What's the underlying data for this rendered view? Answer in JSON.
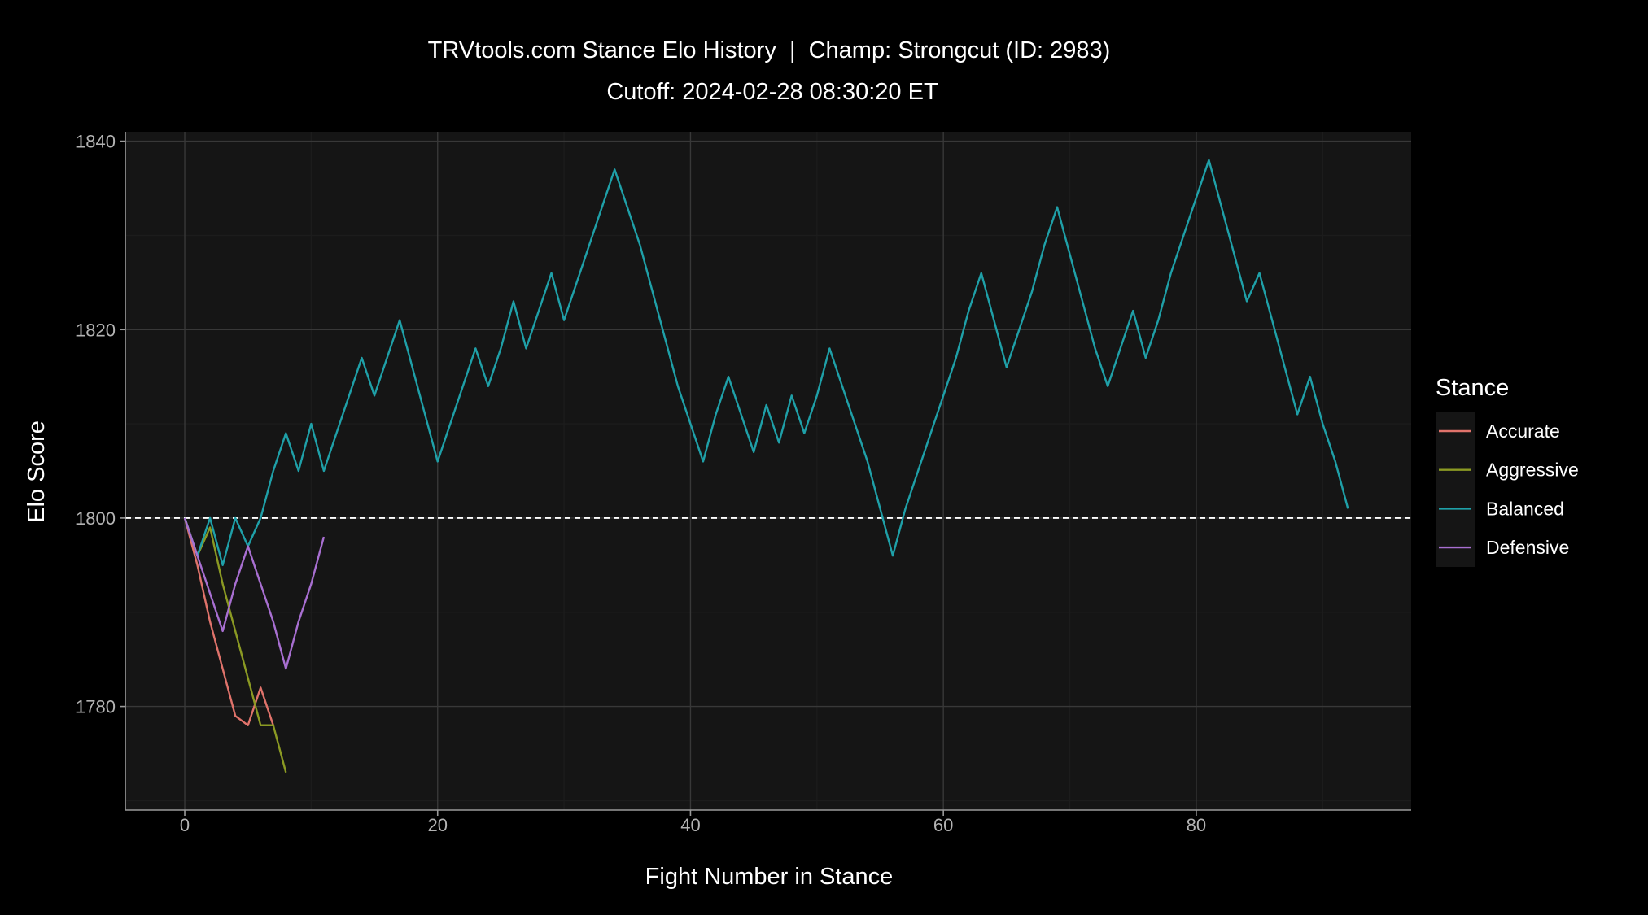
{
  "chart_data": {
    "type": "line",
    "title": "TRVtools.com Stance Elo History  |  Champ: Strongcut (ID: 2983)",
    "subtitle": "Cutoff: 2024-02-28 08:30:20 ET",
    "xlabel": "Fight Number in Stance",
    "ylabel": "Elo Score",
    "xlim": [
      -4.7,
      97
    ],
    "ylim": [
      1769,
      1841
    ],
    "xticks": [
      0,
      20,
      40,
      60,
      80
    ],
    "yticks": [
      1780,
      1800,
      1820,
      1840
    ],
    "reference_line": {
      "y": 1800,
      "style": "dashed"
    },
    "grid": true,
    "legend": {
      "title": "Stance",
      "position": "right"
    },
    "series": [
      {
        "name": "Accurate",
        "color": "#e0736b",
        "x": [
          0,
          1,
          2,
          3,
          4,
          5,
          6,
          7
        ],
        "y": [
          1800,
          1795,
          1789,
          1784,
          1779,
          1778,
          1782,
          1778
        ]
      },
      {
        "name": "Aggressive",
        "color": "#8b9a23",
        "x": [
          0,
          1,
          2,
          3,
          4,
          5,
          6,
          7,
          8
        ],
        "y": [
          1800,
          1796,
          1799,
          1793,
          1788,
          1783,
          1778,
          1778,
          1773
        ]
      },
      {
        "name": "Balanced",
        "color": "#1fa0a8",
        "x": [
          0,
          1,
          2,
          3,
          4,
          5,
          6,
          7,
          8,
          9,
          10,
          11,
          12,
          13,
          14,
          15,
          16,
          17,
          18,
          19,
          20,
          21,
          22,
          23,
          24,
          25,
          26,
          27,
          28,
          29,
          30,
          31,
          32,
          33,
          34,
          35,
          36,
          37,
          38,
          39,
          40,
          41,
          42,
          43,
          44,
          45,
          46,
          47,
          48,
          49,
          50,
          51,
          52,
          53,
          54,
          55,
          56,
          57,
          58,
          59,
          60,
          61,
          62,
          63,
          64,
          65,
          66,
          67,
          68,
          69,
          70,
          71,
          72,
          73,
          74,
          75,
          76,
          77,
          78,
          79,
          80,
          81,
          82,
          83,
          84,
          85,
          86,
          87,
          88,
          89,
          90,
          91,
          92
        ],
        "y": [
          1800,
          1796,
          1800,
          1795,
          1800,
          1797,
          1800,
          1805,
          1809,
          1805,
          1810,
          1805,
          1809,
          1813,
          1817,
          1813,
          1817,
          1821,
          1816,
          1811,
          1806,
          1810,
          1814,
          1818,
          1814,
          1818,
          1823,
          1818,
          1822,
          1826,
          1821,
          1825,
          1829,
          1833,
          1837,
          1833,
          1829,
          1824,
          1819,
          1814,
          1810,
          1806,
          1811,
          1815,
          1811,
          1807,
          1812,
          1808,
          1813,
          1809,
          1813,
          1818,
          1814,
          1810,
          1806,
          1801,
          1796,
          1801,
          1805,
          1809,
          1813,
          1817,
          1822,
          1826,
          1821,
          1816,
          1820,
          1824,
          1829,
          1833,
          1828,
          1823,
          1818,
          1814,
          1818,
          1822,
          1817,
          1821,
          1826,
          1830,
          1834,
          1838,
          1833,
          1828,
          1823,
          1826,
          1821,
          1816,
          1811,
          1815,
          1810,
          1806,
          1801
        ]
      },
      {
        "name": "Defensive",
        "color": "#a86fd1",
        "x": [
          0,
          1,
          2,
          3,
          4,
          5,
          6,
          7,
          8,
          9,
          10,
          11
        ],
        "y": [
          1800,
          1796,
          1792,
          1788,
          1793,
          1797,
          1793,
          1789,
          1784,
          1789,
          1793,
          1798
        ]
      }
    ]
  }
}
